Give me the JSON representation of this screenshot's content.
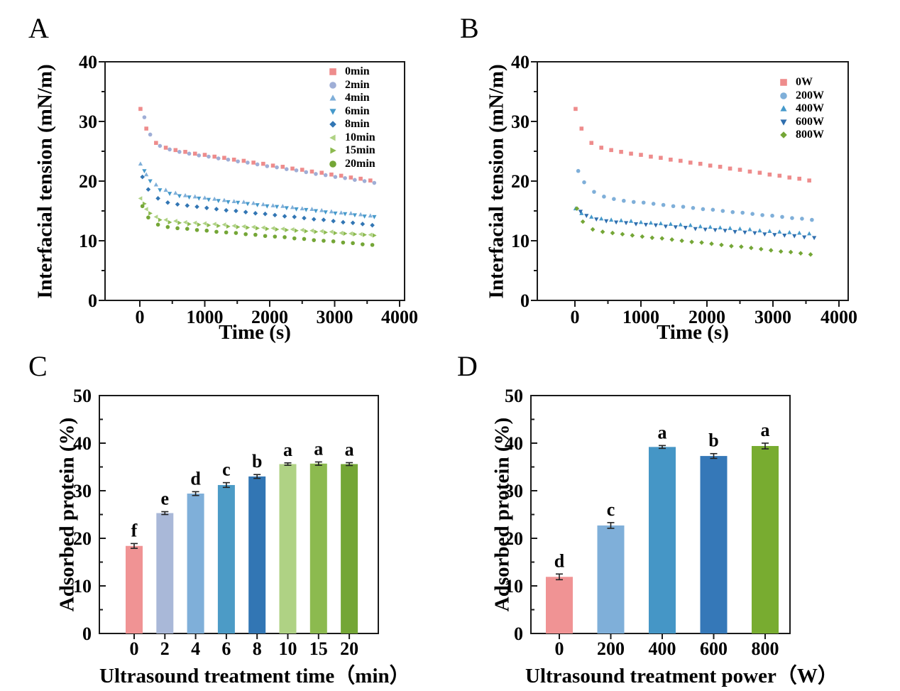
{
  "chart_data": [
    {
      "type": "scatter",
      "panel_label": "A",
      "xlabel": "Time (s)",
      "ylabel": "Interfacial tension (mN/m)",
      "xlim": [
        0,
        4000
      ],
      "ylim": [
        0,
        40
      ],
      "xticks": [
        0,
        1000,
        2000,
        3000,
        4000
      ],
      "yticks": [
        0,
        10,
        20,
        30,
        40
      ],
      "xminor": [
        500,
        1500,
        2500,
        3500
      ],
      "yminor": [
        5,
        15,
        25,
        35
      ],
      "legend_position": "inside-top-right",
      "x": [
        10,
        100,
        250,
        400,
        550,
        700,
        850,
        1000,
        1150,
        1300,
        1450,
        1600,
        1750,
        1900,
        2050,
        2200,
        2350,
        2500,
        2650,
        2800,
        2950,
        3100,
        3250,
        3400,
        3550
      ],
      "series": [
        {
          "name": "0min",
          "marker": "square",
          "color": "#EE8C8C",
          "x_offset": 0,
          "y": [
            32.1,
            28.8,
            26.4,
            25.6,
            25.2,
            24.9,
            24.6,
            24.4,
            24.1,
            23.9,
            23.6,
            23.4,
            23.1,
            22.9,
            22.6,
            22.4,
            22.1,
            21.9,
            21.6,
            21.4,
            21.1,
            20.9,
            20.6,
            20.4,
            20.1
          ]
        },
        {
          "name": "2min",
          "marker": "circle",
          "color": "#9FAED6",
          "x_offset": 60,
          "y": [
            30.7,
            27.8,
            25.9,
            25.3,
            24.9,
            24.6,
            24.3,
            24.1,
            23.8,
            23.6,
            23.3,
            23.1,
            22.8,
            22.5,
            22.3,
            22.0,
            21.8,
            21.5,
            21.2,
            21.0,
            20.7,
            20.5,
            20.2,
            20.0,
            19.7
          ]
        },
        {
          "name": "4min",
          "marker": "triangle-up",
          "color": "#7FAFD9",
          "x_offset": 0,
          "y": [
            22.9,
            21.1,
            19.4,
            18.5,
            18.0,
            17.6,
            17.4,
            17.2,
            17.0,
            16.8,
            16.6,
            16.5,
            16.3,
            16.1,
            15.9,
            15.8,
            15.6,
            15.4,
            15.3,
            15.1,
            14.9,
            14.7,
            14.6,
            14.4,
            14.2
          ]
        },
        {
          "name": "6min",
          "marker": "triangle-down",
          "color": "#4599CB",
          "x_offset": 60,
          "y": [
            21.7,
            20.0,
            18.5,
            17.9,
            17.5,
            17.3,
            17.1,
            16.9,
            16.7,
            16.5,
            16.4,
            16.2,
            16.0,
            15.8,
            15.7,
            15.5,
            15.3,
            15.2,
            15.0,
            14.8,
            14.6,
            14.5,
            14.3,
            14.1,
            14.0
          ]
        },
        {
          "name": "8min",
          "marker": "diamond",
          "color": "#3276B4",
          "x_offset": 30,
          "y": [
            20.7,
            18.6,
            17.1,
            16.4,
            16.1,
            15.9,
            15.7,
            15.5,
            15.3,
            15.1,
            15.0,
            14.8,
            14.6,
            14.5,
            14.3,
            14.1,
            14.0,
            13.8,
            13.6,
            13.5,
            13.3,
            13.1,
            13.0,
            12.8,
            12.6
          ]
        },
        {
          "name": "10min",
          "marker": "triangle-left",
          "color": "#AFD284",
          "x_offset": 0,
          "y": [
            17.1,
            15.3,
            14.0,
            13.5,
            13.3,
            13.1,
            13.0,
            12.9,
            12.8,
            12.7,
            12.5,
            12.4,
            12.3,
            12.2,
            12.1,
            12.0,
            11.9,
            11.8,
            11.7,
            11.6,
            11.5,
            11.3,
            11.2,
            11.1,
            11.0
          ]
        },
        {
          "name": "15min",
          "marker": "triangle-right",
          "color": "#8CBA4F",
          "x_offset": 60,
          "y": [
            16.2,
            14.6,
            13.5,
            13.1,
            13.0,
            12.8,
            12.7,
            12.6,
            12.5,
            12.4,
            12.3,
            12.2,
            12.1,
            12.0,
            11.9,
            11.8,
            11.7,
            11.6,
            11.5,
            11.4,
            11.3,
            11.2,
            11.1,
            11.0,
            10.9
          ]
        },
        {
          "name": "20min",
          "marker": "circle",
          "color": "#74A636",
          "x_offset": 30,
          "y": [
            15.8,
            13.9,
            12.7,
            12.3,
            12.1,
            12.0,
            11.8,
            11.7,
            11.5,
            11.4,
            11.3,
            11.1,
            11.0,
            10.8,
            10.7,
            10.6,
            10.4,
            10.3,
            10.1,
            10.0,
            9.9,
            9.7,
            9.6,
            9.4,
            9.3
          ]
        }
      ]
    },
    {
      "type": "scatter",
      "panel_label": "B",
      "xlabel": "Time (s)",
      "ylabel": "Interfacial tension (mN/m)",
      "xlim": [
        0,
        4000
      ],
      "ylim": [
        0,
        40
      ],
      "xticks": [
        0,
        1000,
        2000,
        3000,
        4000
      ],
      "yticks": [
        0,
        10,
        20,
        30,
        40
      ],
      "xminor": [
        500,
        1500,
        2500,
        3500
      ],
      "yminor": [
        5,
        15,
        25,
        35
      ],
      "legend_position": "inside-top-right",
      "x": [
        10,
        100,
        250,
        400,
        550,
        700,
        850,
        1000,
        1150,
        1300,
        1450,
        1600,
        1750,
        1900,
        2050,
        2200,
        2350,
        2500,
        2650,
        2800,
        2950,
        3100,
        3250,
        3400,
        3550
      ],
      "series": [
        {
          "name": "0W",
          "marker": "square",
          "color": "#EE8C8C",
          "x_offset": 0,
          "y": [
            32.1,
            28.8,
            26.4,
            25.6,
            25.2,
            24.9,
            24.6,
            24.4,
            24.1,
            23.9,
            23.6,
            23.4,
            23.1,
            22.9,
            22.6,
            22.4,
            22.1,
            21.9,
            21.6,
            21.4,
            21.1,
            20.9,
            20.6,
            20.4,
            20.1
          ]
        },
        {
          "name": "200W",
          "marker": "circle",
          "color": "#7FAFD9",
          "x_offset": 40,
          "y": [
            21.7,
            19.8,
            18.2,
            17.4,
            17.0,
            16.7,
            16.5,
            16.4,
            16.2,
            16.0,
            15.8,
            15.7,
            15.5,
            15.3,
            15.2,
            15.0,
            14.8,
            14.7,
            14.5,
            14.3,
            14.2,
            14.0,
            13.8,
            13.7,
            13.5
          ]
        },
        {
          "name": "400W",
          "marker": "triangle-up",
          "color": "#4599CB",
          "x_offset": 0,
          "y": [
            15.4,
            14.6,
            14.0,
            13.7,
            13.5,
            13.4,
            13.3,
            13.1,
            13.0,
            12.9,
            12.8,
            12.7,
            12.6,
            12.4,
            12.3,
            12.2,
            12.1,
            12.0,
            11.9,
            11.7,
            11.6,
            11.5,
            11.4,
            11.3,
            11.2
          ]
        },
        {
          "name": "600W",
          "marker": "triangle-down",
          "color": "#2F6EAE",
          "x_offset": 75,
          "y": [
            14.9,
            14.2,
            13.6,
            13.3,
            13.1,
            13.0,
            12.8,
            12.7,
            12.6,
            12.4,
            12.3,
            12.2,
            12.0,
            11.9,
            11.8,
            11.7,
            11.5,
            11.4,
            11.3,
            11.1,
            11.0,
            10.9,
            10.8,
            10.6,
            10.5
          ]
        },
        {
          "name": "800W",
          "marker": "diamond",
          "color": "#74A636",
          "x_offset": 20,
          "y": [
            15.4,
            13.2,
            11.9,
            11.5,
            11.3,
            11.1,
            10.9,
            10.7,
            10.5,
            10.4,
            10.2,
            10.0,
            9.8,
            9.7,
            9.5,
            9.3,
            9.1,
            9.0,
            8.8,
            8.6,
            8.4,
            8.2,
            8.1,
            7.9,
            7.7
          ]
        }
      ]
    },
    {
      "type": "bar",
      "panel_label": "C",
      "xlabel": "Ultrasound treatment time（min）",
      "ylabel": "Adsorbed protein (%)",
      "ylim": [
        0,
        50
      ],
      "yticks": [
        0,
        10,
        20,
        30,
        40,
        50
      ],
      "yminor": [
        5,
        15,
        25,
        35,
        45
      ],
      "categories": [
        "0",
        "2",
        "4",
        "6",
        "8",
        "10",
        "15",
        "20"
      ],
      "values": [
        18.4,
        25.3,
        29.4,
        31.2,
        33.0,
        35.6,
        35.7,
        35.6
      ],
      "errors": [
        0.5,
        0.3,
        0.4,
        0.5,
        0.4,
        0.25,
        0.35,
        0.3
      ],
      "letters": [
        "f",
        "e",
        "d",
        "c",
        "b",
        "a",
        "a",
        "a"
      ],
      "colors": [
        "#F09394",
        "#A9B8D8",
        "#7FAFD9",
        "#4C9BC6",
        "#3276B4",
        "#AFD284",
        "#8CBA4F",
        "#74A636"
      ]
    },
    {
      "type": "bar",
      "panel_label": "D",
      "xlabel": "Ultrasound treatment power（W）",
      "ylabel": "Adsorbed protein (%)",
      "ylim": [
        0,
        50
      ],
      "yticks": [
        0,
        10,
        20,
        30,
        40,
        50
      ],
      "yminor": [
        5,
        15,
        25,
        35,
        45
      ],
      "categories": [
        "0",
        "200",
        "400",
        "600",
        "800"
      ],
      "values": [
        11.9,
        22.7,
        39.2,
        37.3,
        39.4
      ],
      "errors": [
        0.6,
        0.6,
        0.3,
        0.5,
        0.6
      ],
      "letters": [
        "d",
        "c",
        "a",
        "b",
        "a"
      ],
      "colors": [
        "#F09394",
        "#7FAFD9",
        "#4596C6",
        "#3578B8",
        "#78AC30"
      ]
    }
  ],
  "style_colors": {
    "axis": "#1a1a1a",
    "text": "#000000",
    "error_bar": "#222222"
  }
}
